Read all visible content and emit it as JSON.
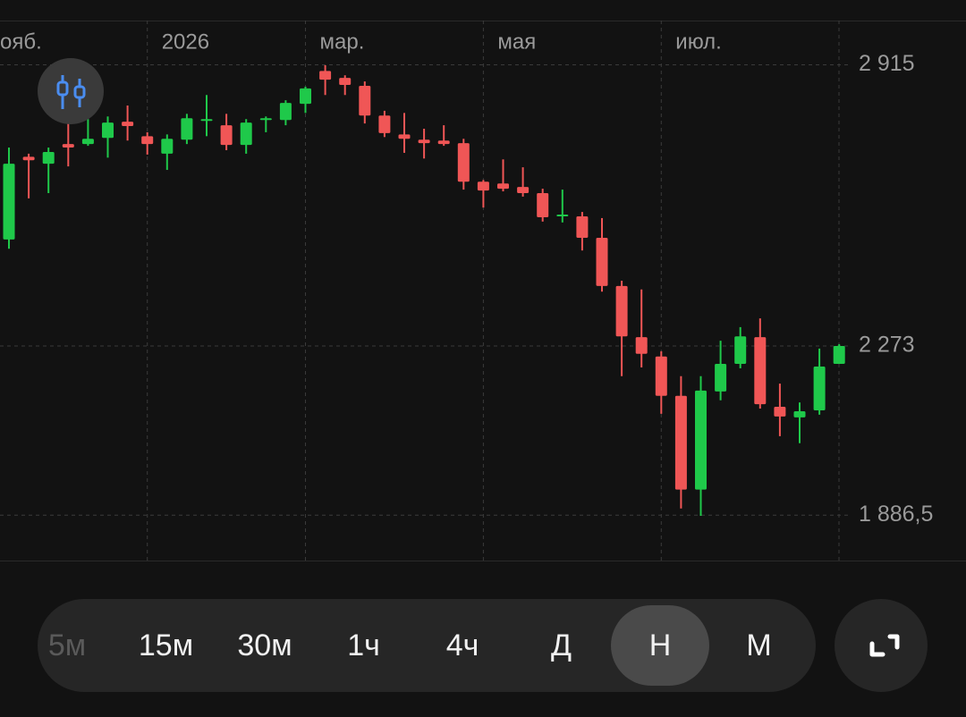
{
  "chart_data": {
    "type": "candlestick",
    "categories": [
      "ояб.",
      null,
      null,
      null,
      null,
      null,
      null,
      "2026",
      null,
      null,
      null,
      null,
      null,
      null,
      null,
      "мар.",
      null,
      null,
      null,
      null,
      null,
      null,
      null,
      null,
      "мая",
      null,
      null,
      null,
      null,
      null,
      null,
      null,
      null,
      "июл.",
      null,
      null,
      null,
      null,
      null,
      null,
      null,
      null,
      null
    ],
    "open": [
      2516,
      2705,
      2689,
      2734,
      2734,
      2748,
      2785,
      2752,
      2712,
      2744,
      2787,
      2777,
      2732,
      2789,
      2789,
      2826,
      2901,
      2885,
      2867,
      2799,
      2756,
      2744,
      2742,
      2736,
      2648,
      2644,
      2636,
      2622,
      2569,
      2569,
      2520,
      2410,
      2293,
      2249,
      2159,
      1945,
      2169,
      2232,
      2293,
      2134,
      2110,
      2126,
      2232
    ],
    "high": [
      2726,
      2712,
      2726,
      2783,
      2791,
      2797,
      2822,
      2761,
      2756,
      2803,
      2846,
      2803,
      2791,
      2797,
      2834,
      2865,
      2914,
      2891,
      2877,
      2810,
      2805,
      2769,
      2777,
      2746,
      2652,
      2699,
      2681,
      2632,
      2630,
      2579,
      2565,
      2422,
      2402,
      2261,
      2204,
      2204,
      2285,
      2316,
      2336,
      2187,
      2144,
      2267,
      2277
    ],
    "low": [
      2495,
      2610,
      2622,
      2683,
      2730,
      2703,
      2742,
      2710,
      2675,
      2734,
      2752,
      2720,
      2712,
      2761,
      2777,
      2805,
      2846,
      2846,
      2781,
      2750,
      2714,
      2701,
      2730,
      2630,
      2589,
      2626,
      2614,
      2557,
      2555,
      2491,
      2397,
      2204,
      2224,
      2118,
      1902,
      1885,
      2149,
      2222,
      2130,
      2067,
      2051,
      2116,
      2232
    ],
    "close": [
      2689,
      2697,
      2716,
      2726,
      2746,
      2783,
      2775,
      2734,
      2746,
      2793,
      2791,
      2732,
      2783,
      2793,
      2828,
      2861,
      2881,
      2869,
      2799,
      2759,
      2746,
      2736,
      2734,
      2648,
      2628,
      2632,
      2622,
      2567,
      2573,
      2520,
      2410,
      2295,
      2255,
      2159,
      1945,
      2171,
      2232,
      2295,
      2140,
      2112,
      2124,
      2226,
      2273
    ],
    "up_color": "#1fc94a",
    "down_color": "#f05656",
    "ylim": [
      1783,
      3016
    ],
    "yticks": [
      {
        "value": 2915,
        "label": "2 915"
      },
      {
        "value": 2273,
        "label": "2 273"
      },
      {
        "value": 1886.5,
        "label": "1 886,5"
      }
    ]
  },
  "toolbar": {
    "intervals": [
      "5м",
      "15м",
      "30м",
      "1ч",
      "4ч",
      "Д",
      "Н",
      "М"
    ]
  }
}
